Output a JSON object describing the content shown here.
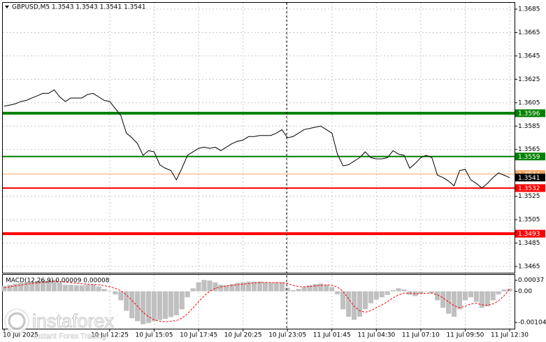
{
  "chart_data": {
    "type": "line",
    "title": "GBPUSD,M5  1.3543 1.3543 1.3541 1.3541",
    "color": "#000000",
    "categories": [
      "10 Jul 2025",
      null,
      null,
      null,
      null,
      null,
      null,
      null,
      null,
      null,
      null,
      null,
      null,
      null,
      null,
      null,
      null,
      null,
      null,
      "10 Jul 12:25",
      null,
      null,
      null,
      null,
      null,
      null,
      null,
      "10 Jul 15:05",
      null,
      null,
      null,
      null,
      null,
      null,
      null,
      "10 Jul 17:45",
      null,
      null,
      null,
      null,
      null,
      null,
      null,
      "10 Jul 20:25",
      null,
      null,
      null,
      null,
      null,
      null,
      null,
      "10 Jul 23:05",
      null,
      null,
      null,
      null,
      null,
      null,
      null,
      "11 Jul 01:45",
      null,
      null,
      null,
      null,
      null,
      null,
      null,
      "11 Jul 04:30",
      null,
      null,
      null,
      null,
      null,
      null,
      null,
      "11 Jul 07:10",
      null,
      null,
      null,
      null,
      null,
      null,
      null,
      "11 Jul 09:50",
      null,
      null,
      null,
      null,
      null,
      null,
      null,
      "11 Jul 12:30"
    ],
    "values": [
      1.3602,
      1.3603,
      1.3604,
      1.3606,
      1.3607,
      1.3609,
      1.3611,
      1.3613,
      1.3613,
      1.3616,
      1.361,
      1.3606,
      1.3609,
      1.3609,
      1.3609,
      1.3612,
      1.3613,
      1.361,
      1.3607,
      1.3606,
      1.36,
      1.3594,
      1.3579,
      1.3575,
      1.357,
      1.356,
      1.3564,
      1.3563,
      1.3552,
      1.3549,
      1.3547,
      1.3539,
      1.3549,
      1.356,
      1.3563,
      1.3566,
      1.3567,
      1.3566,
      1.3567,
      1.3564,
      1.3567,
      1.357,
      1.3572,
      1.3573,
      1.3576,
      1.3576,
      1.3577,
      1.3577,
      1.3577,
      1.3579,
      1.3582,
      1.3575,
      1.3576,
      1.3579,
      1.3582,
      1.3583,
      1.3584,
      1.3585,
      1.3582,
      1.3579,
      1.3561,
      1.3551,
      1.3552,
      1.3555,
      1.3558,
      1.3563,
      1.3558,
      1.3557,
      1.3557,
      1.3558,
      1.3564,
      1.3561,
      1.356,
      1.3549,
      1.3553,
      1.3558,
      1.356,
      1.3558,
      1.3543,
      1.3541,
      1.3538,
      1.3534,
      1.3547,
      1.3548,
      1.3539,
      1.3536,
      1.3532,
      1.3536,
      1.3541,
      1.3545,
      1.3543,
      1.3541
    ],
    "ylim": [
      1.34596,
      1.36904
    ],
    "yticks": [
      1.3685,
      1.3665,
      1.3645,
      1.3625,
      1.3605,
      1.3585,
      1.3565,
      1.3525,
      1.3505,
      1.3485,
      1.3465
    ],
    "grid": true,
    "levels": [
      {
        "value": 1.3596,
        "color": "#008000",
        "style": "thick"
      },
      {
        "value": 1.3559,
        "color": "#008000",
        "style": "normal"
      },
      {
        "value": 1.3544,
        "color": "#f4a460",
        "style": "thin"
      },
      {
        "value": 1.3541,
        "color": "#000000",
        "style": "label"
      },
      {
        "value": 1.3532,
        "color": "#ff0000",
        "style": "normal"
      },
      {
        "value": 1.3493,
        "color": "#ff0000",
        "style": "thick"
      }
    ],
    "macd": {
      "type": "macd",
      "title": "MACD(12,26,9) 0.00009 0.00008",
      "histogram_color": "#c0c0c0",
      "signal_color": "#ff0000",
      "histogram": [
        0.00018,
        0.00022,
        0.00025,
        0.00028,
        0.0003,
        0.00032,
        0.00034,
        0.00036,
        0.00036,
        0.00038,
        0.0003,
        0.00022,
        0.00022,
        0.0002,
        0.0002,
        0.00022,
        0.00022,
        0.00016,
        8e-05,
        2e-05,
        -0.0001,
        -0.0003,
        -0.00065,
        -0.0009,
        -0.001,
        -0.0011,
        -0.00106,
        -0.001,
        -0.00096,
        -0.00092,
        -0.00086,
        -0.0008,
        -0.0006,
        -0.0002,
        0.0001,
        0.0003,
        0.00038,
        0.00036,
        0.0003,
        0.00022,
        0.0002,
        0.00024,
        0.00028,
        0.0003,
        0.00032,
        0.00032,
        0.00033,
        0.0003,
        0.00028,
        0.0003,
        0.0003,
        0.00012,
        4e-05,
        8e-05,
        0.00014,
        0.0002,
        0.00024,
        0.00026,
        0.00022,
        0.00014,
        -0.0001,
        -0.0006,
        -0.00085,
        -0.00095,
        -0.00085,
        -0.0006,
        -0.0004,
        -0.00028,
        -0.0002,
        -0.00012,
        4e-05,
        0.0001,
        6e-05,
        -0.00012,
        -0.00016,
        -8e-05,
        0,
        -6e-05,
        -0.0003,
        -0.00055,
        -0.00075,
        -0.00085,
        -0.0006,
        -0.0003,
        -0.0002,
        -0.00035,
        -0.00055,
        -0.0005,
        -0.0003,
        -0.0001,
        6e-05,
        9e-05
      ],
      "signal": [
        0.00012,
        0.00015,
        0.00018,
        0.00021,
        0.00024,
        0.00026,
        0.00028,
        0.0003,
        0.00032,
        0.00033,
        0.00033,
        0.00031,
        0.00029,
        0.00027,
        0.00025,
        0.00024,
        0.00023,
        0.00022,
        0.00019,
        0.00015,
        0.0001,
        2e-05,
        -0.00012,
        -0.0003,
        -0.0005,
        -0.0007,
        -0.00085,
        -0.00095,
        -0.001,
        -0.00102,
        -0.001,
        -0.00098,
        -0.0009,
        -0.00075,
        -0.00055,
        -0.00035,
        -0.00015,
        0,
        0.0001,
        0.00015,
        0.00018,
        0.0002,
        0.00022,
        0.00024,
        0.00026,
        0.00028,
        0.00029,
        0.0003,
        0.00029,
        0.00029,
        0.00029,
        0.00026,
        0.0002,
        0.00016,
        0.00015,
        0.00016,
        0.00018,
        0.0002,
        0.00021,
        0.0002,
        0.00014,
        0,
        -0.00025,
        -0.0005,
        -0.00065,
        -0.0007,
        -0.00065,
        -0.00055,
        -0.00045,
        -0.00035,
        -0.00022,
        -0.00012,
        -6e-05,
        -6e-05,
        -8e-05,
        -8e-05,
        -6e-05,
        -6e-05,
        -0.00012,
        -0.00022,
        -0.00035,
        -0.00048,
        -0.00055,
        -0.0005,
        -0.00042,
        -0.0004,
        -0.00045,
        -0.00047,
        -0.00042,
        -0.00032,
        -0.00015,
        8e-05
      ],
      "ylim": [
        -0.00125,
        0.00055
      ],
      "yticks": [
        0.00037,
        {
          "value": 0,
          "label": "0.00"
        },
        -0.00104
      ]
    },
    "watermark": {
      "name": "instaforex",
      "tagline": "Instant Forex Trading"
    }
  }
}
